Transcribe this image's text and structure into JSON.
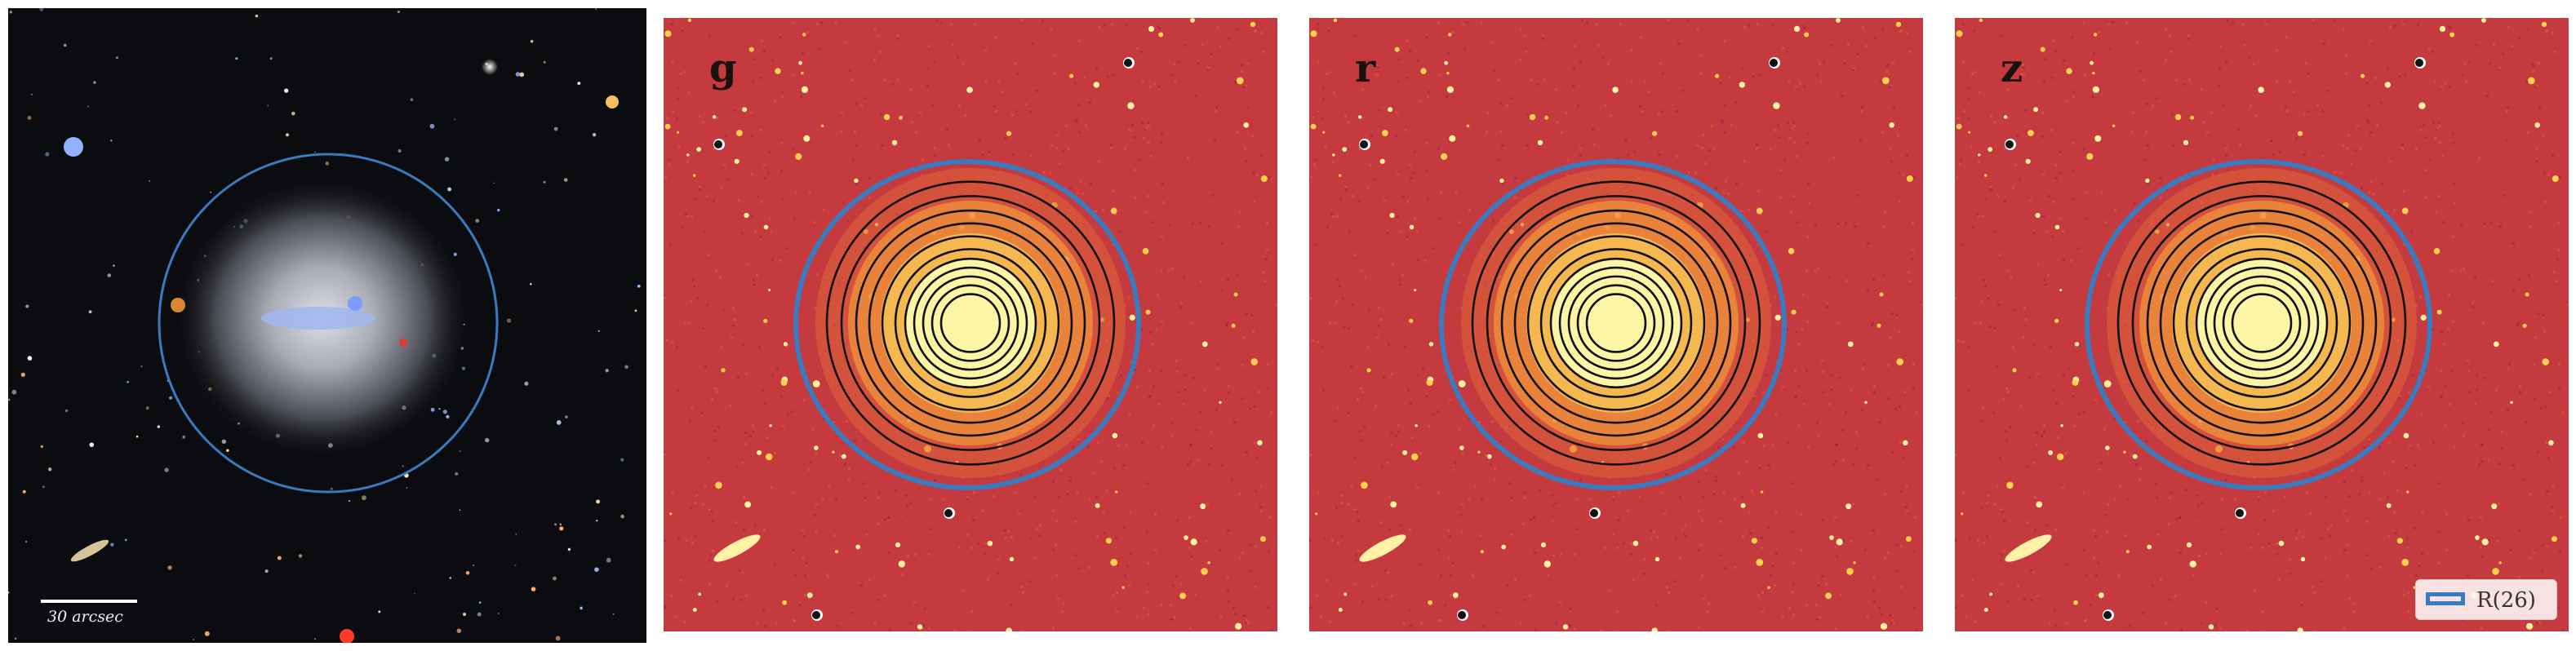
{
  "scale_bar": {
    "label": "30 arcsec"
  },
  "bands": [
    {
      "label": "g"
    },
    {
      "label": "r"
    },
    {
      "label": "z"
    }
  ],
  "legend": {
    "label": "R(26)",
    "color": "#3a7bbf"
  },
  "colors": {
    "aperture": "#3a7bbf",
    "residual_bg": "#c53a3f",
    "core": "#fbf5a5",
    "contours": "#111111"
  }
}
